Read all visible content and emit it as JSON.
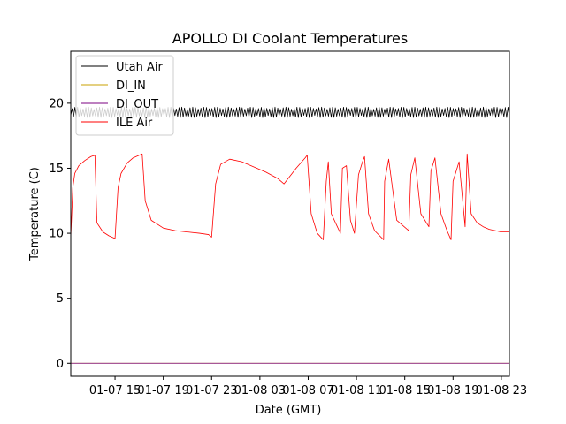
{
  "chart_data": {
    "type": "line",
    "title": "APOLLO DI Coolant Temperatures",
    "xlabel": "Date (GMT)",
    "ylabel": "Temperature (C)",
    "x_unit": "hours",
    "xlim": [
      "01-07 11:20",
      "01-08 23:40"
    ],
    "ylim": [
      -1,
      24
    ],
    "x_ticks": [
      "01-07 15",
      "01-07 19",
      "01-07 23",
      "01-08 03",
      "01-08 07",
      "01-08 11",
      "01-08 15",
      "01-08 19",
      "01-08 23"
    ],
    "y_ticks": [
      "0",
      "5",
      "10",
      "15",
      "20"
    ],
    "grid": false,
    "legend": {
      "position": "top-left",
      "entries": [
        "Utah Air",
        "DI_IN",
        "DI_OUT",
        "ILE Air"
      ]
    },
    "series": [
      {
        "name": "Utah Air",
        "color": "#000000",
        "style": "oscillating band 18.9–19.7",
        "x": [
          "01-07 11:20",
          "01-07 15:00",
          "01-07 19:00",
          "01-07 23:00",
          "01-08 03:00",
          "01-08 07:00",
          "01-08 11:00",
          "01-08 15:00",
          "01-08 19:00",
          "01-08 23:40"
        ],
        "y": [
          19.3,
          19.3,
          19.3,
          19.3,
          19.3,
          19.3,
          19.3,
          19.3,
          19.3,
          19.3
        ]
      },
      {
        "name": "DI_IN",
        "color": "#c8a200",
        "x": [
          "01-07 11:20",
          "01-08 23:40"
        ],
        "y": [
          0,
          0
        ]
      },
      {
        "name": "DI_OUT",
        "color": "#7b0080",
        "x": [
          "01-07 11:20",
          "01-08 23:40"
        ],
        "y": [
          0,
          0
        ]
      },
      {
        "name": "ILE Air",
        "color": "#ff0000",
        "x": [
          "01-07 11:20",
          "01-07 11:30",
          "01-07 11:40",
          "01-07 12:00",
          "01-07 12:30",
          "01-07 13:00",
          "01-07 13:20",
          "01-07 13:30",
          "01-07 14:00",
          "01-07 14:30",
          "01-07 15:00",
          "01-07 15:15",
          "01-07 15:30",
          "01-07 16:00",
          "01-07 16:30",
          "01-07 17:00",
          "01-07 17:15",
          "01-07 17:30",
          "01-07 18:00",
          "01-07 19:00",
          "01-07 20:00",
          "01-07 21:00",
          "01-07 22:00",
          "01-07 22:45",
          "01-07 23:00",
          "01-07 23:20",
          "01-07 23:45",
          "01-08 00:30",
          "01-08 01:30",
          "01-08 02:30",
          "01-08 03:30",
          "01-08 04:30",
          "01-08 05:00",
          "01-08 06:00",
          "01-08 06:45",
          "01-08 06:55",
          "01-08 07:15",
          "01-08 07:45",
          "01-08 08:15",
          "01-08 08:30",
          "01-08 08:40",
          "01-08 08:55",
          "01-08 09:40",
          "01-08 09:50",
          "01-08 10:10",
          "01-08 10:30",
          "01-08 10:50",
          "01-08 11:10",
          "01-08 11:30",
          "01-08 11:40",
          "01-08 12:00",
          "01-08 12:30",
          "01-08 13:15",
          "01-08 13:20",
          "01-08 13:40",
          "01-08 14:20",
          "01-08 15:20",
          "01-08 15:30",
          "01-08 15:50",
          "01-08 16:20",
          "01-08 17:00",
          "01-08 17:10",
          "01-08 17:30",
          "01-08 18:00",
          "01-08 18:30",
          "01-08 18:50",
          "01-08 19:00",
          "01-08 19:30",
          "01-08 20:00",
          "01-08 20:10",
          "01-08 20:30",
          "01-08 21:00",
          "01-08 21:30",
          "01-08 22:00",
          "01-08 23:00",
          "01-08 23:40"
        ],
        "y": [
          9.7,
          13.5,
          14.6,
          15.2,
          15.6,
          15.9,
          16.0,
          10.8,
          10.1,
          9.8,
          9.6,
          13.5,
          14.6,
          15.4,
          15.8,
          16.0,
          16.1,
          12.5,
          11.0,
          10.4,
          10.2,
          10.1,
          10.0,
          9.9,
          9.7,
          13.8,
          15.3,
          15.7,
          15.5,
          15.1,
          14.7,
          14.2,
          13.8,
          15.0,
          15.8,
          16.0,
          11.5,
          10.0,
          9.5,
          14.0,
          15.5,
          11.5,
          10.0,
          15.0,
          15.2,
          11.0,
          10.0,
          14.5,
          15.5,
          15.9,
          11.5,
          10.2,
          9.5,
          14.0,
          15.7,
          11.0,
          10.2,
          14.5,
          15.8,
          11.5,
          10.5,
          14.8,
          15.8,
          11.5,
          10.2,
          9.5,
          14.0,
          15.5,
          10.5,
          16.1,
          11.5,
          10.8,
          10.5,
          10.3,
          10.1,
          10.1
        ]
      }
    ]
  }
}
